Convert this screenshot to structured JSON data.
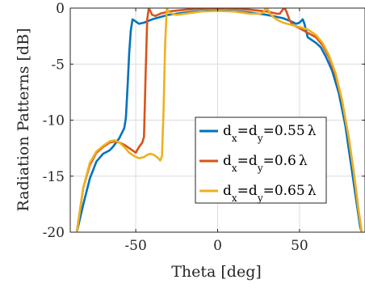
{
  "chart_data": {
    "type": "line",
    "title": "",
    "xlabel": "Theta [deg]",
    "ylabel": "Radiation Patterns [dB]",
    "xlim": [
      -90,
      90
    ],
    "ylim": [
      -20,
      0
    ],
    "xticks": [
      -50,
      0,
      50
    ],
    "yticks": [
      0,
      -5,
      -10,
      -15,
      -20
    ],
    "grid": true,
    "legend_position": "lower-right",
    "series": [
      {
        "name": "d_x=d_y=0.55λ",
        "legend": {
          "d": "d",
          "x": "x",
          "eq1": "=d",
          "y": "y",
          "eq2": "=0.55",
          "lambda": "λ"
        },
        "color": "#0072BD",
        "x": [
          -86,
          -82,
          -78,
          -74,
          -70,
          -66,
          -64,
          -62,
          -60,
          -58,
          -57,
          -56,
          -55,
          -54,
          -53,
          -52,
          -50,
          -48,
          -45,
          -40,
          -30,
          -20,
          -10,
          0,
          10,
          20,
          30,
          40,
          45,
          48,
          50,
          52,
          53,
          54,
          55,
          56,
          57,
          58,
          60,
          63,
          66,
          70,
          74,
          78,
          80,
          82,
          84,
          86,
          87,
          88
        ],
        "y": [
          -20,
          -17.5,
          -15.2,
          -13.7,
          -13.0,
          -12.7,
          -12.4,
          -12.0,
          -11.6,
          -11.0,
          -10.7,
          -9.8,
          -7.0,
          -4.0,
          -2.0,
          -1.0,
          -1.2,
          -1.4,
          -1.3,
          -1.0,
          -0.6,
          -0.4,
          -0.25,
          -0.2,
          -0.25,
          -0.4,
          -0.6,
          -0.9,
          -1.2,
          -1.4,
          -1.3,
          -1.0,
          -1.4,
          -2.0,
          -2.6,
          -2.7,
          -2.8,
          -2.9,
          -3.1,
          -3.5,
          -4.3,
          -5.6,
          -7.6,
          -10.5,
          -12.5,
          -14.5,
          -16.5,
          -18.5,
          -19.5,
          -20
        ]
      },
      {
        "name": "d_x=d_y=0.6λ",
        "legend": {
          "d": "d",
          "x": "x",
          "eq1": "=d",
          "y": "y",
          "eq2": "=0.6",
          "lambda": "λ"
        },
        "color": "#D95319",
        "x": [
          -86,
          -82,
          -78,
          -74,
          -70,
          -66,
          -63,
          -60,
          -57,
          -54,
          -52,
          -50,
          -48,
          -46,
          -45,
          -44,
          -43,
          -42,
          -41,
          -40,
          -38,
          -35,
          -30,
          -20,
          -10,
          0,
          10,
          20,
          30,
          36,
          38,
          40,
          41,
          42,
          43,
          44,
          46,
          50,
          55,
          60,
          64,
          68,
          72,
          76,
          80,
          83,
          86,
          88
        ],
        "y": [
          -20,
          -16,
          -14,
          -12.9,
          -12.4,
          -12.0,
          -11.9,
          -12.0,
          -12.2,
          -12.5,
          -12.7,
          -12.9,
          -12.4,
          -12.0,
          -11.5,
          -6.0,
          -1.0,
          0.0,
          -0.3,
          -0.6,
          -0.7,
          -0.5,
          -0.3,
          -0.15,
          -0.05,
          0,
          -0.05,
          -0.15,
          -0.3,
          -0.5,
          -0.5,
          -0.1,
          0.0,
          -0.3,
          -0.7,
          -1.1,
          -1.5,
          -1.8,
          -2.2,
          -2.6,
          -3.3,
          -4.4,
          -6.0,
          -8.3,
          -11.5,
          -14.5,
          -18.0,
          -20
        ]
      },
      {
        "name": "d_x=d_y=0.65λ",
        "legend": {
          "d": "d",
          "x": "x",
          "eq1": "=d",
          "y": "y",
          "eq2": "=0.65",
          "lambda": "λ"
        },
        "color": "#EDB120",
        "x": [
          -86,
          -82,
          -78,
          -74,
          -70,
          -66,
          -63,
          -60,
          -57,
          -54,
          -51,
          -48,
          -45,
          -43,
          -41,
          -39,
          -37,
          -35,
          -34,
          -33,
          -32,
          -31,
          -30,
          -28,
          -25,
          -20,
          -10,
          0,
          10,
          20,
          26,
          28,
          29,
          30,
          31,
          32,
          34,
          37,
          40,
          45,
          50,
          55,
          60,
          64,
          68,
          72,
          76,
          80,
          83,
          86,
          88
        ],
        "y": [
          -20,
          -16,
          -13.8,
          -12.8,
          -12.3,
          -11.9,
          -11.8,
          -12.0,
          -12.4,
          -12.9,
          -13.2,
          -13.4,
          -13.3,
          -13.1,
          -13.0,
          -13.1,
          -13.3,
          -13.6,
          -13.2,
          -9.0,
          -3.0,
          0.0,
          -0.3,
          -0.5,
          -0.6,
          -0.5,
          -0.3,
          -0.25,
          -0.3,
          -0.5,
          -0.5,
          -0.4,
          -0.1,
          0.0,
          -0.2,
          -0.5,
          -0.8,
          -1.1,
          -1.3,
          -1.5,
          -1.7,
          -1.9,
          -2.4,
          -3.1,
          -4.2,
          -5.8,
          -8.2,
          -11.5,
          -14.5,
          -18.0,
          -20
        ]
      }
    ]
  }
}
